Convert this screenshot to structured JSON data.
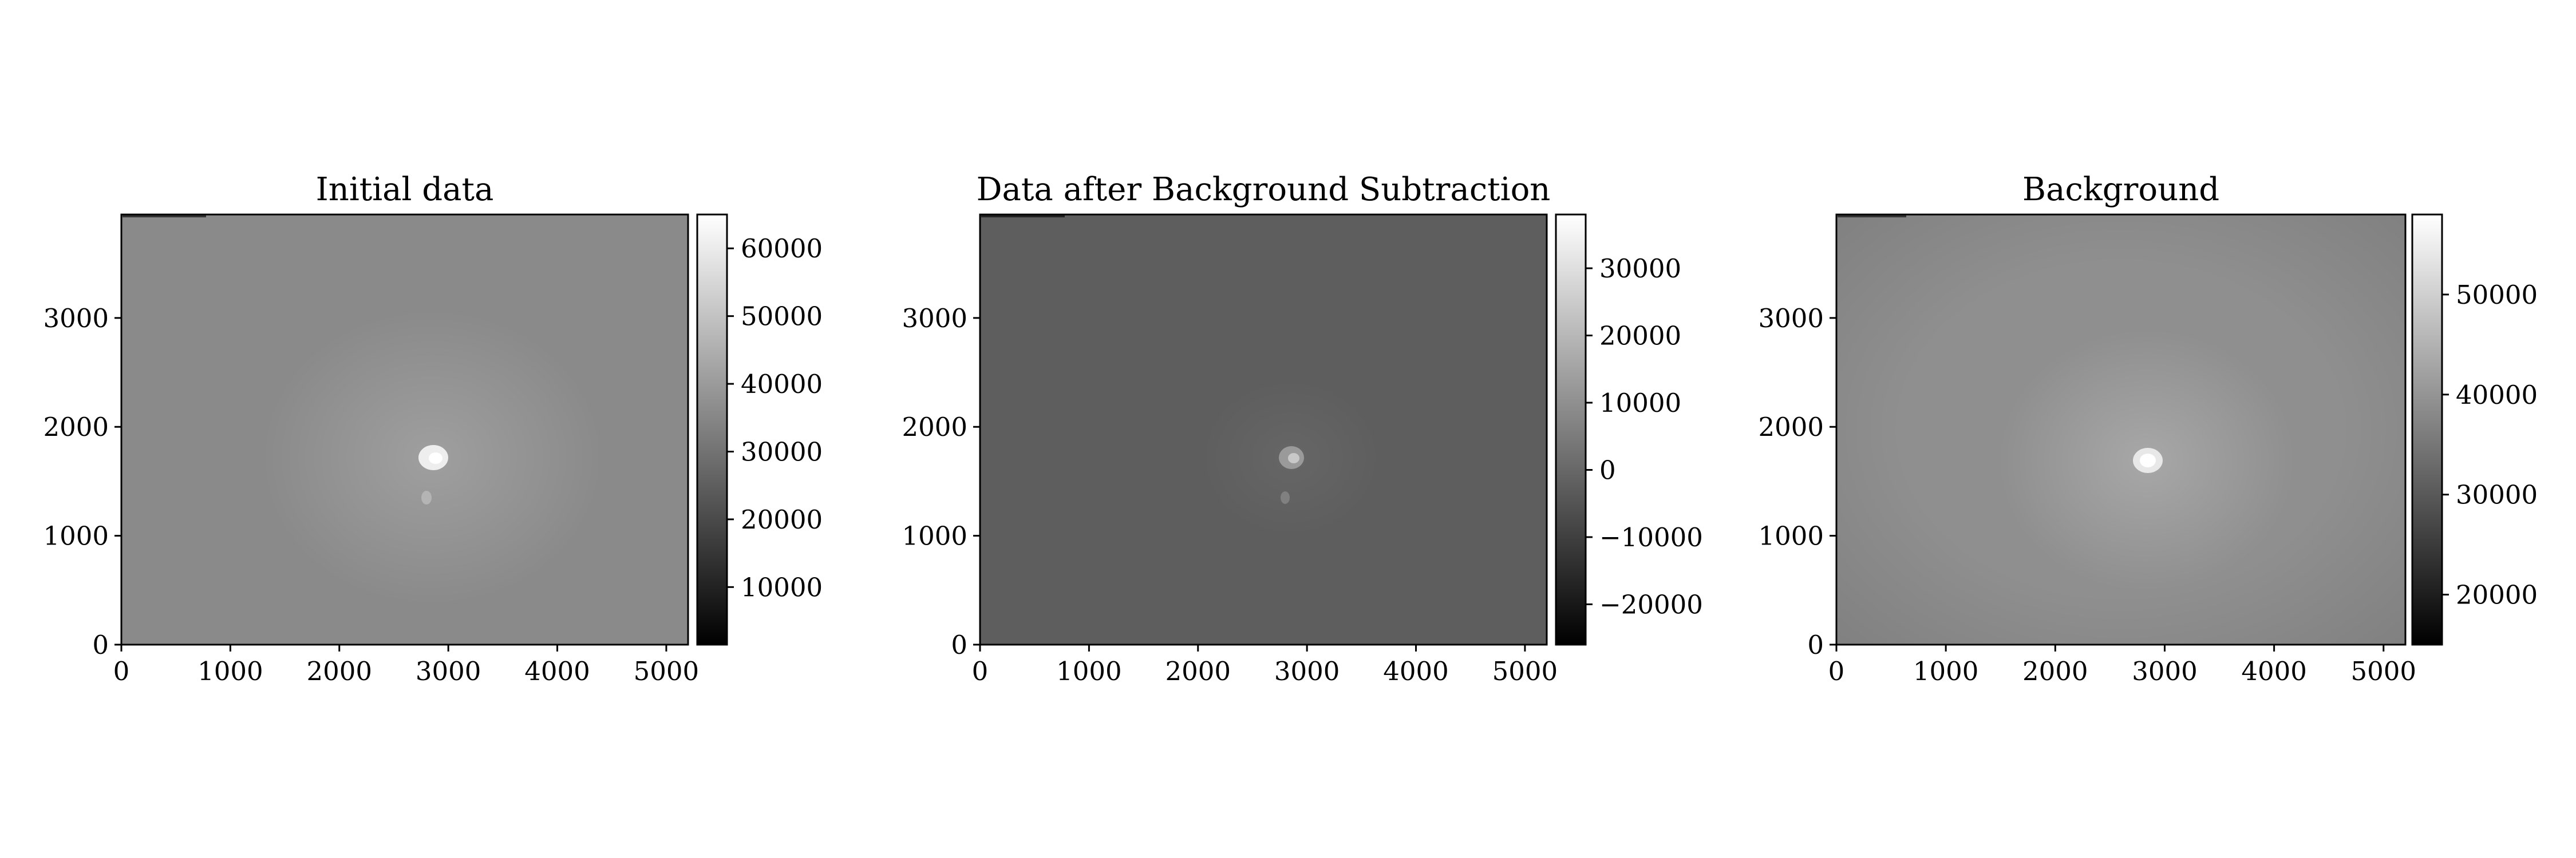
{
  "chart_data": [
    {
      "type": "heatmap",
      "title": "Initial data",
      "colormap": "gray",
      "xlim": [
        0,
        5200
      ],
      "ylim": [
        0,
        3950
      ],
      "x_ticks": [
        0,
        1000,
        2000,
        3000,
        4000,
        5000
      ],
      "y_ticks": [
        0,
        1000,
        2000,
        3000
      ],
      "x_tick_labels": [
        "0",
        "1000",
        "2000",
        "3000",
        "4000",
        "5000"
      ],
      "y_tick_labels": [
        "0",
        "1000",
        "2000",
        "3000"
      ],
      "colorbar": {
        "range": [
          1500,
          65000
        ],
        "ticks": [
          10000,
          20000,
          30000,
          40000,
          50000,
          60000
        ],
        "tick_labels": [
          "10000",
          "20000",
          "30000",
          "40000",
          "50000",
          "60000"
        ]
      },
      "background_level": 40000,
      "bright_source": {
        "x": 2850,
        "y": 1700,
        "peak": 62000
      }
    },
    {
      "type": "heatmap",
      "title": "Data after Background Subtraction",
      "colormap": "gray",
      "xlim": [
        0,
        5200
      ],
      "ylim": [
        0,
        3950
      ],
      "x_ticks": [
        0,
        1000,
        2000,
        3000,
        4000,
        5000
      ],
      "y_ticks": [
        0,
        1000,
        2000,
        3000
      ],
      "x_tick_labels": [
        "0",
        "1000",
        "2000",
        "3000",
        "4000",
        "5000"
      ],
      "y_tick_labels": [
        "0",
        "1000",
        "2000",
        "3000"
      ],
      "colorbar": {
        "range": [
          -26000,
          38000
        ],
        "ticks": [
          -20000,
          -10000,
          0,
          10000,
          20000,
          30000
        ],
        "tick_labels": [
          "−20000",
          "−10000",
          "0",
          "10000",
          "20000",
          "30000"
        ]
      },
      "background_level": 0,
      "bright_source": {
        "x": 2850,
        "y": 1700,
        "peak": 22000
      }
    },
    {
      "type": "heatmap",
      "title": "Background",
      "colormap": "gray",
      "xlim": [
        0,
        5200
      ],
      "ylim": [
        0,
        3950
      ],
      "x_ticks": [
        0,
        1000,
        2000,
        3000,
        4000,
        5000
      ],
      "y_ticks": [
        0,
        1000,
        2000,
        3000
      ],
      "x_tick_labels": [
        "0",
        "1000",
        "2000",
        "3000",
        "4000",
        "5000"
      ],
      "y_tick_labels": [
        "0",
        "1000",
        "2000",
        "3000"
      ],
      "colorbar": {
        "range": [
          15000,
          58000
        ],
        "ticks": [
          20000,
          30000,
          40000,
          50000
        ],
        "tick_labels": [
          "20000",
          "30000",
          "40000",
          "50000"
        ]
      },
      "background_level": 40000,
      "bright_source": {
        "x": 2850,
        "y": 1700,
        "peak": 56000
      }
    }
  ]
}
